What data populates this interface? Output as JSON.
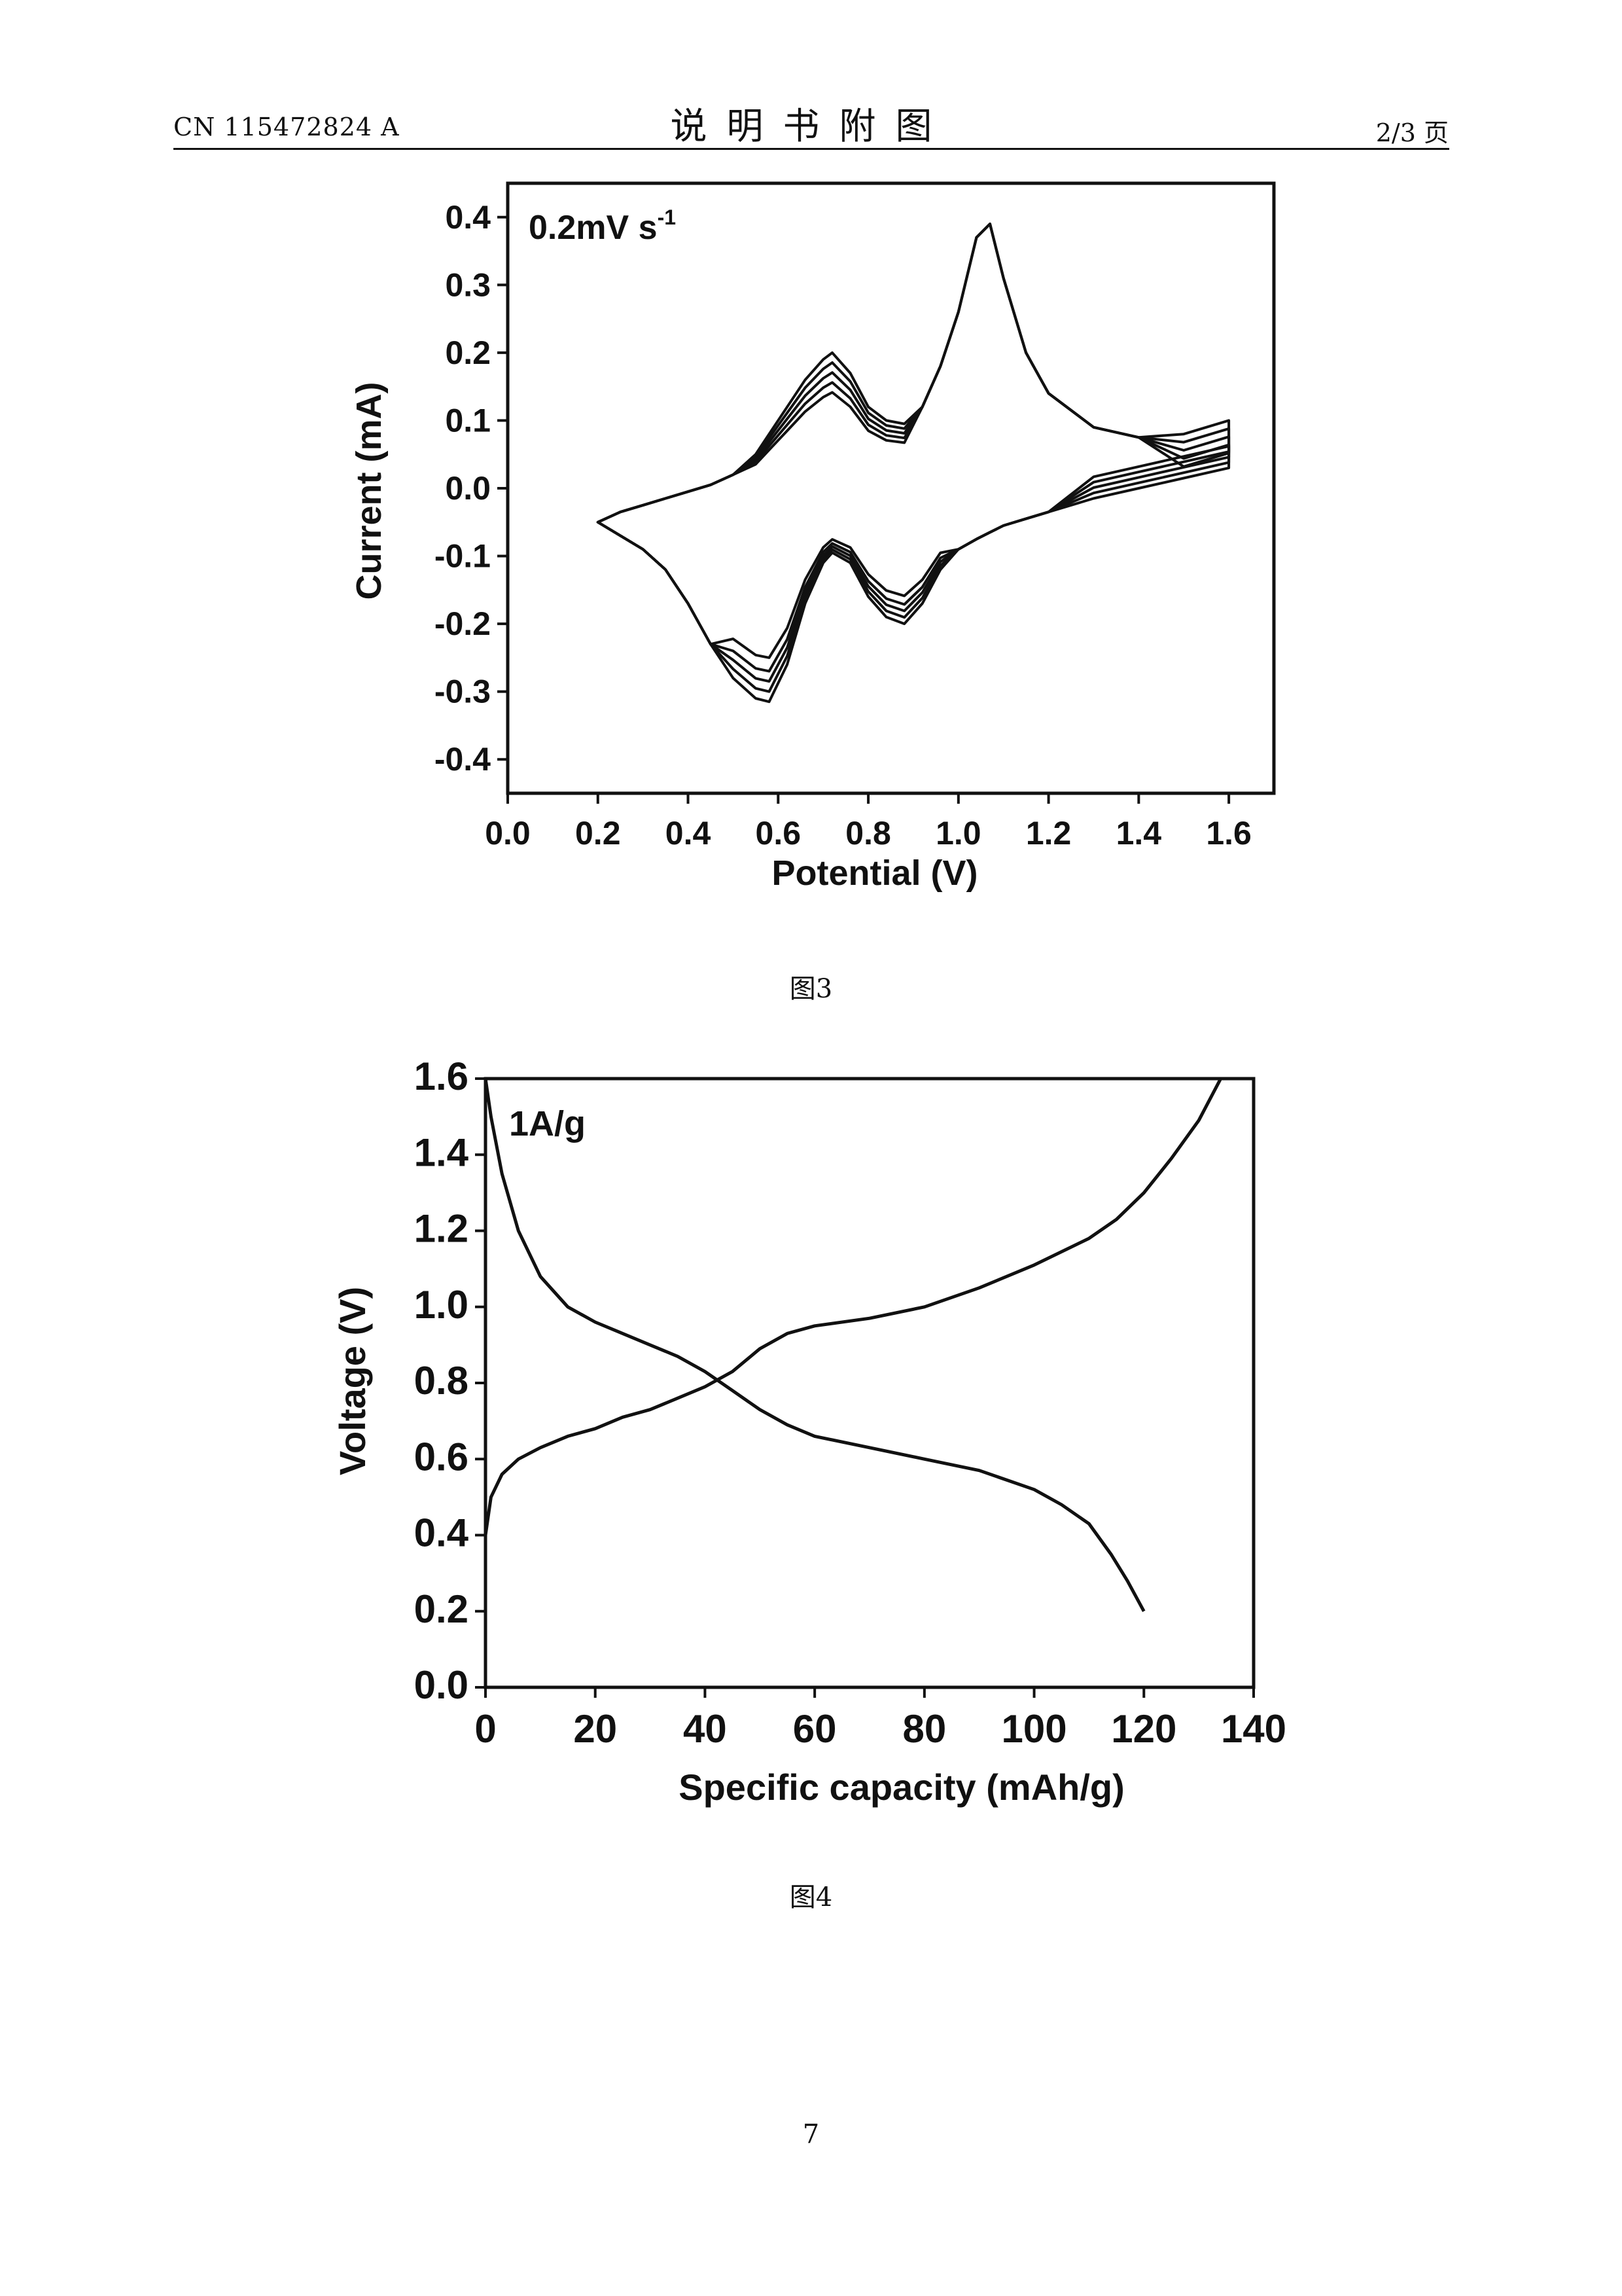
{
  "header": {
    "patent_number": "CN 115472824 A",
    "section_title": "说明书附图",
    "page_fraction": "2/3 页"
  },
  "page_number": "7",
  "chart_data": [
    {
      "type": "line",
      "caption": "图3",
      "annotation": "0.2mV s",
      "annotation_sup": "-1",
      "xlabel": "Potential (V)",
      "ylabel": "Current (mA)",
      "xlim": [
        0.0,
        1.7
      ],
      "ylim": [
        -0.45,
        0.45
      ],
      "xticks": [
        "0.0",
        "0.2",
        "0.4",
        "0.6",
        "0.8",
        "1.0",
        "1.2",
        "1.4",
        "1.6"
      ],
      "yticks": [
        "-0.4",
        "-0.3",
        "-0.2",
        "-0.1",
        "0.0",
        "0.1",
        "0.2",
        "0.3",
        "0.4"
      ],
      "cycles": 5,
      "anodic_peak_heights": [
        0.145,
        0.16,
        0.175,
        0.19,
        0.205
      ],
      "cathodic_peak_heights": [
        -0.25,
        -0.27,
        -0.285,
        -0.3,
        -0.315
      ],
      "x": [
        0.2,
        0.25,
        0.3,
        0.35,
        0.4,
        0.45,
        0.5,
        0.55,
        0.58,
        0.62,
        0.66,
        0.7,
        0.72,
        0.76,
        0.8,
        0.84,
        0.88,
        0.92,
        0.96,
        1.0,
        1.04,
        1.07,
        1.1,
        1.15,
        1.2,
        1.3,
        1.4,
        1.5,
        1.6
      ],
      "anodic_current": [
        -0.05,
        -0.035,
        -0.025,
        -0.015,
        -0.005,
        0.005,
        0.02,
        0.05,
        0.08,
        0.12,
        0.16,
        0.19,
        0.2,
        0.17,
        0.12,
        0.1,
        0.095,
        0.12,
        0.18,
        0.26,
        0.37,
        0.39,
        0.31,
        0.2,
        0.14,
        0.09,
        0.075,
        0.08,
        0.1
      ],
      "cathodic_current": [
        -0.05,
        -0.07,
        -0.09,
        -0.12,
        -0.17,
        -0.23,
        -0.28,
        -0.31,
        -0.315,
        -0.26,
        -0.17,
        -0.11,
        -0.095,
        -0.11,
        -0.16,
        -0.19,
        -0.2,
        -0.17,
        -0.12,
        -0.09,
        -0.075,
        -0.065,
        -0.055,
        -0.045,
        -0.035,
        -0.015,
        0.0,
        0.015,
        0.03
      ]
    },
    {
      "type": "line",
      "caption": "图4",
      "annotation": "1A/g",
      "xlabel": "Specific capacity (mAh/g)",
      "ylabel": "Voltage (V)",
      "xlim": [
        0,
        140
      ],
      "ylim": [
        0.0,
        1.6
      ],
      "xticks": [
        "0",
        "20",
        "40",
        "60",
        "80",
        "100",
        "120",
        "140"
      ],
      "yticks": [
        "0.0",
        "0.2",
        "0.4",
        "0.6",
        "0.8",
        "1.0",
        "1.2",
        "1.4",
        "1.6"
      ],
      "series": [
        {
          "x": [
            0,
            1,
            3,
            6,
            10,
            15,
            20,
            25,
            30,
            35,
            40,
            45,
            50,
            55,
            60,
            70,
            80,
            90,
            100,
            105,
            110,
            114,
            117,
            120
          ],
          "y": [
            1.6,
            1.5,
            1.35,
            1.2,
            1.08,
            1.0,
            0.96,
            0.93,
            0.9,
            0.87,
            0.83,
            0.78,
            0.73,
            0.69,
            0.66,
            0.63,
            0.6,
            0.57,
            0.52,
            0.48,
            0.43,
            0.35,
            0.28,
            0.2
          ]
        },
        {
          "x": [
            0,
            1,
            3,
            6,
            10,
            15,
            20,
            25,
            30,
            35,
            40,
            45,
            50,
            55,
            60,
            70,
            80,
            90,
            100,
            110,
            115,
            120,
            125,
            130,
            134
          ],
          "y": [
            0.4,
            0.5,
            0.56,
            0.6,
            0.63,
            0.66,
            0.68,
            0.71,
            0.73,
            0.76,
            0.79,
            0.83,
            0.89,
            0.93,
            0.95,
            0.97,
            1.0,
            1.05,
            1.11,
            1.18,
            1.23,
            1.3,
            1.39,
            1.49,
            1.6
          ]
        }
      ]
    }
  ]
}
